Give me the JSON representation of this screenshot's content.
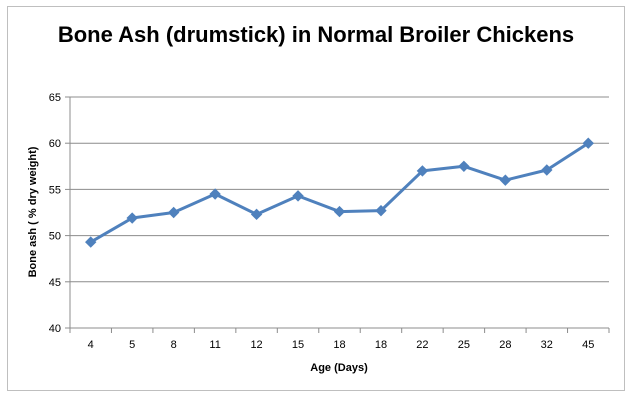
{
  "chart_data": {
    "type": "line",
    "title": "Bone Ash (drumstick) in Normal Broiler Chickens",
    "xlabel": "Age (Days)",
    "ylabel": "Bone ash ( % dry weight)",
    "categories": [
      "4",
      "5",
      "8",
      "11",
      "12",
      "15",
      "18",
      "18",
      "22",
      "25",
      "28",
      "32",
      "45"
    ],
    "series": [
      {
        "values": [
          49.3,
          51.9,
          52.5,
          54.5,
          52.3,
          54.3,
          52.6,
          52.7,
          57.0,
          57.5,
          56.0,
          57.1,
          60.0
        ],
        "color": "#4f81bd",
        "marker": "diamond"
      }
    ],
    "ylim": [
      40,
      65
    ],
    "yticks": [
      "40",
      "45",
      "50",
      "55",
      "60",
      "65"
    ],
    "grid": "horizontal",
    "legend": "none"
  }
}
